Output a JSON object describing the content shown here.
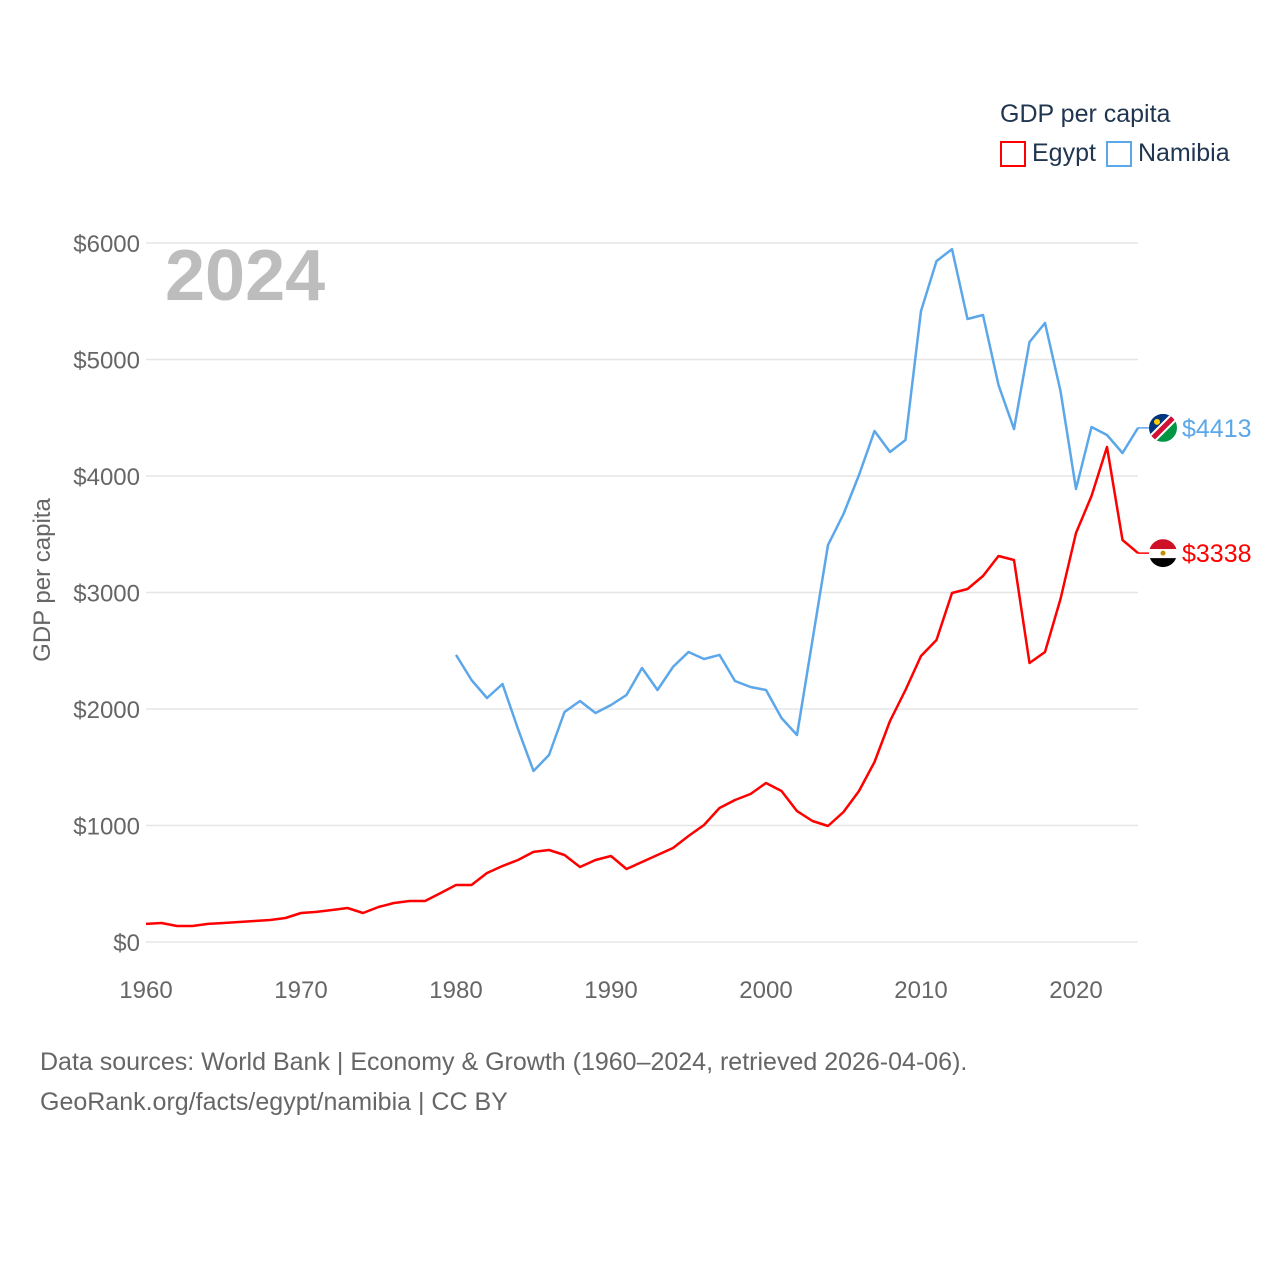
{
  "chart_data": {
    "type": "line",
    "title": "GDP per capita",
    "ylabel": "GDP per capita",
    "xlabel": "",
    "year_label": "2024",
    "xlim": [
      1960,
      2024
    ],
    "ylim": [
      0,
      6000
    ],
    "x_ticks": [
      1960,
      1970,
      1980,
      1990,
      2000,
      2010,
      2020
    ],
    "x_tick_labels": [
      "1960",
      "1970",
      "1980",
      "1990",
      "2000",
      "2010",
      "2020"
    ],
    "y_ticks": [
      0,
      1000,
      2000,
      3000,
      4000,
      5000,
      6000
    ],
    "y_tick_labels": [
      "$0",
      "$1000",
      "$2000",
      "$3000",
      "$4000",
      "$5000",
      "$6000"
    ],
    "grid": true,
    "legend_placement": "top-right",
    "series": [
      {
        "name": "Egypt",
        "color": "#ff0000",
        "end_label": "$3338",
        "start_year": 1960,
        "values": [
          155,
          163,
          137,
          137,
          155,
          163,
          172,
          180,
          189,
          206,
          249,
          258,
          275,
          292,
          249,
          300,
          335,
          352,
          352,
          420,
          489,
          489,
          592,
          652,
          704,
          773,
          790,
          747,
          644,
          704,
          738,
          627,
          687,
          747,
          807,
          910,
          1004,
          1150,
          1219,
          1270,
          1365,
          1296,
          1124,
          1039,
          996,
          1116,
          1296,
          1545,
          1897,
          2163,
          2455,
          2592,
          2996,
          3030,
          3142,
          3313,
          3279,
          2395,
          2489,
          2944,
          3511,
          3828,
          4249,
          3451,
          3338
        ]
      },
      {
        "name": "Namibia",
        "color": "#5ba7ea",
        "end_label": "$4413",
        "start_year": 1980,
        "values": [
          2464,
          2249,
          2094,
          2215,
          1828,
          1468,
          1605,
          1974,
          2069,
          1966,
          2034,
          2120,
          2352,
          2163,
          2361,
          2489,
          2429,
          2464,
          2240,
          2189,
          2163,
          1923,
          1777,
          2592,
          3408,
          3674,
          4009,
          4386,
          4206,
          4309,
          5416,
          5845,
          5948,
          5348,
          5382,
          4781,
          4403,
          5150,
          5313,
          4730,
          3888,
          4421,
          4352,
          4197,
          4413
        ]
      }
    ]
  },
  "footer": {
    "line1": "Data sources: World Bank | Economy & Growth (1960–2024, retrieved 2026-04-06).",
    "line2": "GeoRank.org/facts/egypt/namibia | CC BY"
  }
}
